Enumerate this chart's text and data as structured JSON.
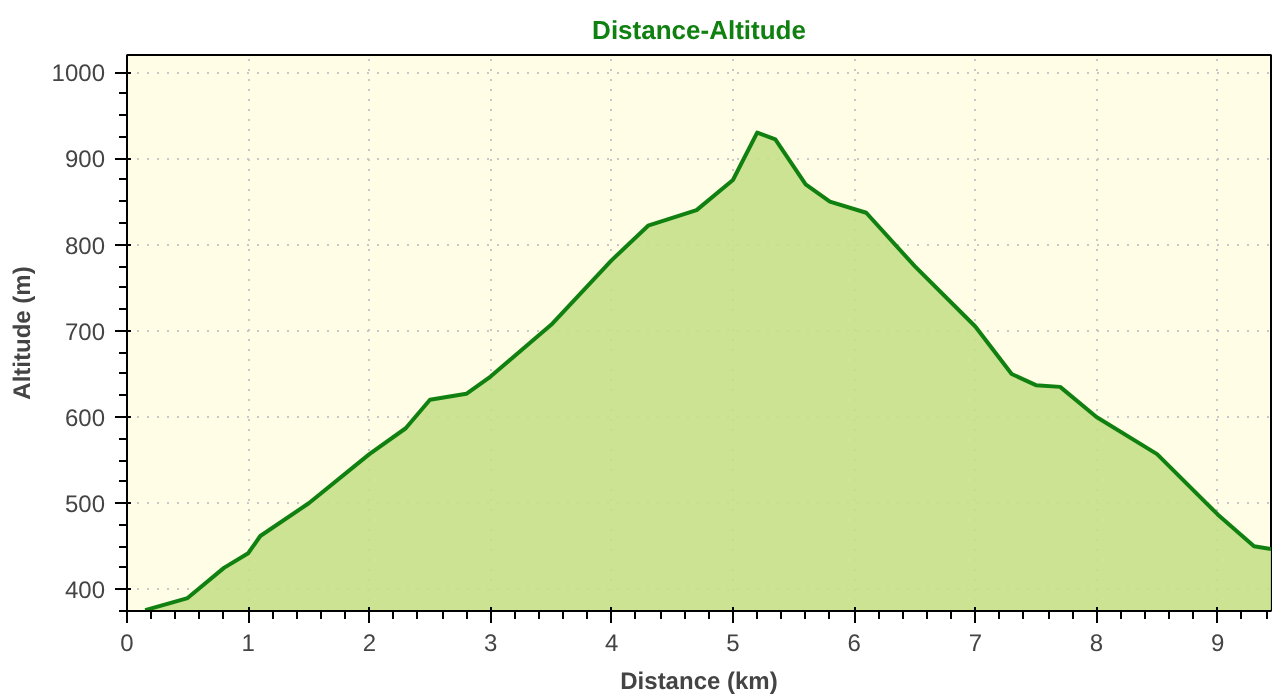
{
  "chart_data": {
    "type": "area",
    "title": "Distance-Altitude",
    "xlabel": "Distance (km)",
    "ylabel": "Altitude (m)",
    "x": [
      0.15,
      0.5,
      0.8,
      1.0,
      1.1,
      1.5,
      2.0,
      2.3,
      2.5,
      2.8,
      3.0,
      3.5,
      4.0,
      4.3,
      4.7,
      5.0,
      5.2,
      5.35,
      5.6,
      5.8,
      6.1,
      6.5,
      7.0,
      7.3,
      7.5,
      7.7,
      8.0,
      8.5,
      9.0,
      9.3,
      9.44
    ],
    "series": [
      {
        "color": "#108010",
        "values": [
          376,
          390,
          425,
          442,
          462,
          500,
          557,
          587,
          620,
          627,
          647,
          707,
          782,
          822,
          840,
          875,
          930,
          922,
          870,
          850,
          837,
          775,
          705,
          650,
          637,
          635,
          600,
          557,
          487,
          450,
          447
        ]
      }
    ],
    "xlim": [
      0,
      9.44
    ],
    "ylim": [
      375,
      1020
    ],
    "xticks": [
      0,
      1,
      2,
      3,
      4,
      5,
      6,
      7,
      8,
      9
    ],
    "yticks": [
      400,
      500,
      600,
      700,
      800,
      900,
      1000
    ],
    "grid": true,
    "line_style": "solid"
  }
}
